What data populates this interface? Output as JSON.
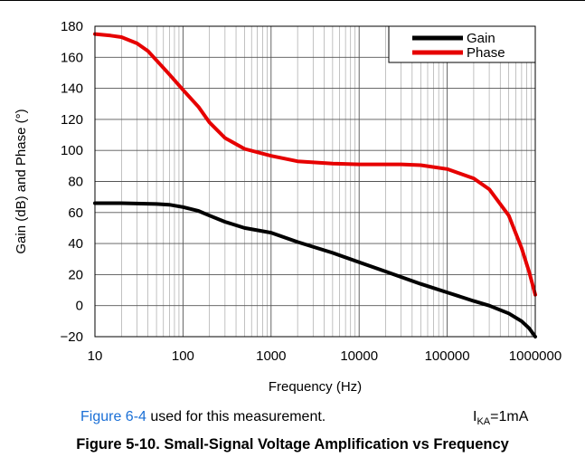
{
  "chart_data": {
    "type": "line",
    "xlabel": "Frequency (Hz)",
    "ylabel": "Gain (dB) and Phase (°)",
    "x_scale": "log",
    "xlim": [
      10,
      1000000
    ],
    "ylim": [
      -20,
      180
    ],
    "x_ticks": [
      "10",
      "100",
      "1000",
      "10000",
      "100000",
      "1000000"
    ],
    "y_ticks": [
      "−20",
      "0",
      "20",
      "40",
      "60",
      "80",
      "100",
      "120",
      "140",
      "160",
      "180"
    ],
    "grid": true,
    "legend_position": "top-right",
    "series": [
      {
        "name": "Gain",
        "color": "#000000",
        "points": [
          [
            10,
            66
          ],
          [
            20,
            66
          ],
          [
            50,
            65.5
          ],
          [
            70,
            65
          ],
          [
            100,
            63.5
          ],
          [
            150,
            61
          ],
          [
            200,
            58
          ],
          [
            300,
            54
          ],
          [
            500,
            50
          ],
          [
            1000,
            47
          ],
          [
            2000,
            41
          ],
          [
            5000,
            34
          ],
          [
            10000,
            28
          ],
          [
            20000,
            22
          ],
          [
            50000,
            14
          ],
          [
            100000,
            8.5
          ],
          [
            200000,
            3
          ],
          [
            300000,
            0
          ],
          [
            500000,
            -5
          ],
          [
            700000,
            -10
          ],
          [
            850000,
            -14.5
          ],
          [
            1000000,
            -20
          ]
        ]
      },
      {
        "name": "Phase",
        "color": "#e60000",
        "points": [
          [
            10,
            175
          ],
          [
            15,
            174
          ],
          [
            20,
            173
          ],
          [
            30,
            169
          ],
          [
            40,
            164
          ],
          [
            50,
            158
          ],
          [
            70,
            149
          ],
          [
            100,
            139
          ],
          [
            150,
            128
          ],
          [
            200,
            118
          ],
          [
            300,
            108
          ],
          [
            500,
            101
          ],
          [
            1000,
            96.5
          ],
          [
            2000,
            93
          ],
          [
            5000,
            91.5
          ],
          [
            10000,
            91
          ],
          [
            30000,
            91
          ],
          [
            50000,
            90.5
          ],
          [
            100000,
            88
          ],
          [
            200000,
            82
          ],
          [
            300000,
            75
          ],
          [
            500000,
            58
          ],
          [
            700000,
            37
          ],
          [
            850000,
            22
          ],
          [
            1000000,
            7
          ]
        ]
      }
    ]
  },
  "note": {
    "link_text": "Figure 6-4",
    "rest_text": " used for this measurement.",
    "condition_main": "I",
    "condition_sub": "KA",
    "condition_value": "=1mA"
  },
  "caption": "Figure 5-10. Small-Signal Voltage Amplification vs Frequency"
}
